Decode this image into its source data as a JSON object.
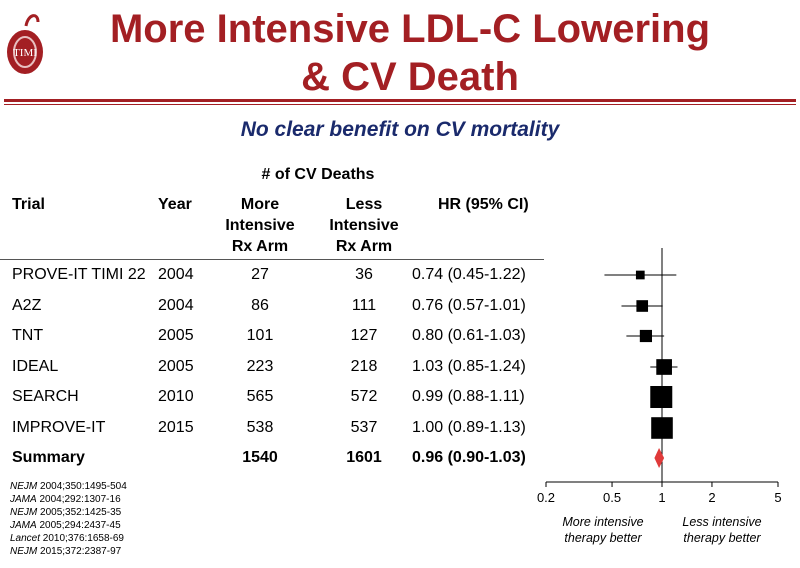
{
  "title": {
    "line1": "More Intensive LDL-C Lowering",
    "line2": "& CV Death"
  },
  "logo": {
    "text": "TIMI"
  },
  "subtitle": "No clear benefit on CV mortality",
  "table": {
    "group_header": "# of CV Deaths",
    "headers": {
      "trial": "Trial",
      "year": "Year",
      "more": [
        "More",
        "Intensive",
        "Rx Arm"
      ],
      "less": [
        "Less",
        "Intensive",
        "Rx Arm"
      ],
      "hr": "HR (95% CI)"
    },
    "rows": [
      {
        "trial": "PROVE-IT TIMI 22",
        "year": "2004",
        "more": "27",
        "less": "36",
        "hr": "0.74 (0.45-1.22)"
      },
      {
        "trial": "A2Z",
        "year": "2004",
        "more": "86",
        "less": "111",
        "hr": "0.76 (0.57-1.01)"
      },
      {
        "trial": "TNT",
        "year": "2005",
        "more": "101",
        "less": "127",
        "hr": "0.80 (0.61-1.03)"
      },
      {
        "trial": "IDEAL",
        "year": "2005",
        "more": "223",
        "less": "218",
        "hr": "1.03 (0.85-1.24)"
      },
      {
        "trial": "SEARCH",
        "year": "2010",
        "more": "565",
        "less": "572",
        "hr": "0.99 (0.88-1.11)"
      },
      {
        "trial": "IMPROVE-IT",
        "year": "2015",
        "more": "538",
        "less": "537",
        "hr": "1.00 (0.89-1.13)"
      }
    ],
    "summary": {
      "trial": "Summary",
      "year": "",
      "more": "1540",
      "less": "1601",
      "hr": "0.96 (0.90-1.03)"
    }
  },
  "references": [
    {
      "journal": "NEJM",
      "cite": " 2004;350:1495-504"
    },
    {
      "journal": "JAMA",
      "cite": " 2004;292:1307-16"
    },
    {
      "journal": "NEJM",
      "cite": " 2005;352:1425-35"
    },
    {
      "journal": "JAMA",
      "cite": " 2005;294:2437-45"
    },
    {
      "journal": "Lancet",
      "cite": " 2010;376:1658-69"
    },
    {
      "journal": "NEJM",
      "cite": " 2015;372:2387-97"
    }
  ],
  "chart_data": {
    "type": "forest",
    "x_scale": "log",
    "xlim": [
      0.2,
      5
    ],
    "xticks": [
      0.2,
      0.5,
      1,
      2,
      5
    ],
    "xtick_labels": [
      "0.2",
      "0.5",
      "1",
      "2",
      "5"
    ],
    "reference_line": 1,
    "series": [
      {
        "name": "PROVE-IT TIMI 22",
        "hr": 0.74,
        "lo": 0.45,
        "hi": 1.22,
        "weight": 27
      },
      {
        "name": "A2Z",
        "hr": 0.76,
        "lo": 0.57,
        "hi": 1.01,
        "weight": 86
      },
      {
        "name": "TNT",
        "hr": 0.8,
        "lo": 0.61,
        "hi": 1.03,
        "weight": 101
      },
      {
        "name": "IDEAL",
        "hr": 1.03,
        "lo": 0.85,
        "hi": 1.24,
        "weight": 223
      },
      {
        "name": "SEARCH",
        "hr": 0.99,
        "lo": 0.88,
        "hi": 1.11,
        "weight": 565
      },
      {
        "name": "IMPROVE-IT",
        "hr": 1.0,
        "lo": 0.89,
        "hi": 1.13,
        "weight": 538
      }
    ],
    "summary": {
      "name": "Summary",
      "hr": 0.96,
      "lo": 0.9,
      "hi": 1.03
    },
    "left_label": [
      "More intensive",
      "therapy better"
    ],
    "right_label": [
      "Less intensive",
      "therapy better"
    ],
    "colors": {
      "marker": "#000000",
      "summary": "#e03a3a"
    }
  }
}
